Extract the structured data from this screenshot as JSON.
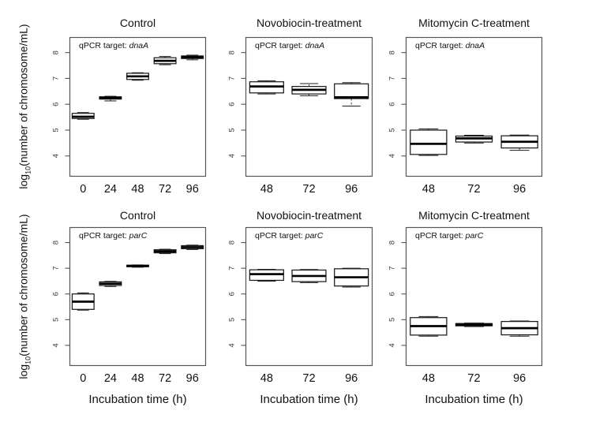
{
  "figure": {
    "ylabel_pre": "log",
    "ylabel_sub": "10",
    "ylabel_post": "(number of chromosome/mL)",
    "xlabel": "Incubation time (h)"
  },
  "colors": {
    "background": "#ffffff",
    "panel_border": "#555555",
    "box_stroke": "#1c1c1c",
    "median": "#000000",
    "whisker": "#3c3c3c",
    "text": "#111111",
    "tick_text": "#3a3a3a"
  },
  "chart_data": [
    {
      "type": "boxplot",
      "title": "Control",
      "annotation_prefix": "qPCR target:",
      "gene": "dnaA",
      "categories": [
        "0",
        "24",
        "48",
        "72",
        "96"
      ],
      "ylabel": "log10(number of chromosome/mL)",
      "xlabel": "",
      "ylim": [
        3.2,
        8.6
      ],
      "yticks": [
        4,
        5,
        6,
        7,
        8
      ],
      "boxes": [
        {
          "low": 5.42,
          "q1": 5.45,
          "med": 5.52,
          "q3": 5.65,
          "high": 5.68
        },
        {
          "low": 6.13,
          "q1": 6.2,
          "med": 6.25,
          "q3": 6.29,
          "high": 6.31
        },
        {
          "low": 6.93,
          "q1": 6.96,
          "med": 7.08,
          "q3": 7.2,
          "high": 7.22
        },
        {
          "low": 7.53,
          "q1": 7.57,
          "med": 7.68,
          "q3": 7.8,
          "high": 7.85
        },
        {
          "low": 7.72,
          "q1": 7.77,
          "med": 7.82,
          "q3": 7.87,
          "high": 7.9
        }
      ]
    },
    {
      "type": "boxplot",
      "title": "Novobiocin-treatment",
      "annotation_prefix": "qPCR target:",
      "gene": "dnaA",
      "categories": [
        "48",
        "72",
        "96"
      ],
      "ylabel": "log10(number of chromosome/mL)",
      "xlabel": "",
      "ylim": [
        3.2,
        8.6
      ],
      "yticks": [
        4,
        5,
        6,
        7,
        8
      ],
      "boxes": [
        {
          "low": 6.4,
          "q1": 6.44,
          "med": 6.69,
          "q3": 6.87,
          "high": 6.91
        },
        {
          "low": 6.33,
          "q1": 6.4,
          "med": 6.56,
          "q3": 6.69,
          "high": 6.8
        },
        {
          "low": 5.93,
          "q1": 6.22,
          "med": 6.27,
          "q3": 6.79,
          "high": 6.84
        }
      ]
    },
    {
      "type": "boxplot",
      "title": "Mitomycin C-treatment",
      "annotation_prefix": "qPCR target:",
      "gene": "dnaA",
      "categories": [
        "48",
        "72",
        "96"
      ],
      "ylabel": "log10(number of chromosome/mL)",
      "xlabel": "",
      "ylim": [
        3.2,
        8.6
      ],
      "yticks": [
        4,
        5,
        6,
        7,
        8
      ],
      "boxes": [
        {
          "low": 4.02,
          "q1": 4.06,
          "med": 4.47,
          "q3": 5.0,
          "high": 5.05
        },
        {
          "low": 4.5,
          "q1": 4.54,
          "med": 4.68,
          "q3": 4.77,
          "high": 4.8
        },
        {
          "low": 4.22,
          "q1": 4.31,
          "med": 4.55,
          "q3": 4.78,
          "high": 4.81
        }
      ]
    },
    {
      "type": "boxplot",
      "title": "Control",
      "annotation_prefix": "qPCR target:",
      "gene": "parC",
      "categories": [
        "0",
        "24",
        "48",
        "72",
        "96"
      ],
      "ylabel": "log10(number of chromosome/mL)",
      "xlabel": "Incubation time (h)",
      "ylim": [
        3.2,
        8.6
      ],
      "yticks": [
        4,
        5,
        6,
        7,
        8
      ],
      "boxes": [
        {
          "low": 5.37,
          "q1": 5.4,
          "med": 5.7,
          "q3": 6.0,
          "high": 6.04
        },
        {
          "low": 6.29,
          "q1": 6.33,
          "med": 6.4,
          "q3": 6.47,
          "high": 6.49
        },
        {
          "low": 7.04,
          "q1": 7.06,
          "med": 7.09,
          "q3": 7.12,
          "high": 7.13
        },
        {
          "low": 7.57,
          "q1": 7.6,
          "med": 7.66,
          "q3": 7.72,
          "high": 7.74
        },
        {
          "low": 7.73,
          "q1": 7.76,
          "med": 7.82,
          "q3": 7.88,
          "high": 7.9
        }
      ]
    },
    {
      "type": "boxplot",
      "title": "Novobiocin-treatment",
      "annotation_prefix": "qPCR target:",
      "gene": "parC",
      "categories": [
        "48",
        "72",
        "96"
      ],
      "ylabel": "log10(number of chromosome/mL)",
      "xlabel": "Incubation time (h)",
      "ylim": [
        3.2,
        8.6
      ],
      "yticks": [
        4,
        5,
        6,
        7,
        8
      ],
      "boxes": [
        {
          "low": 6.5,
          "q1": 6.53,
          "med": 6.77,
          "q3": 6.94,
          "high": 6.96
        },
        {
          "low": 6.44,
          "q1": 6.48,
          "med": 6.7,
          "q3": 6.93,
          "high": 6.95
        },
        {
          "low": 6.27,
          "q1": 6.31,
          "med": 6.65,
          "q3": 6.98,
          "high": 7.0
        }
      ]
    },
    {
      "type": "boxplot",
      "title": "Mitomycin C-treatment",
      "annotation_prefix": "qPCR target:",
      "gene": "parC",
      "categories": [
        "48",
        "72",
        "96"
      ],
      "ylabel": "log10(number of chromosome/mL)",
      "xlabel": "Incubation time (h)",
      "ylim": [
        3.2,
        8.6
      ],
      "yticks": [
        4,
        5,
        6,
        7,
        8
      ],
      "boxes": [
        {
          "low": 4.36,
          "q1": 4.4,
          "med": 4.75,
          "q3": 5.08,
          "high": 5.12
        },
        {
          "low": 4.73,
          "q1": 4.76,
          "med": 4.8,
          "q3": 4.85,
          "high": 4.87
        },
        {
          "low": 4.36,
          "q1": 4.41,
          "med": 4.67,
          "q3": 4.93,
          "high": 4.95
        }
      ]
    }
  ]
}
